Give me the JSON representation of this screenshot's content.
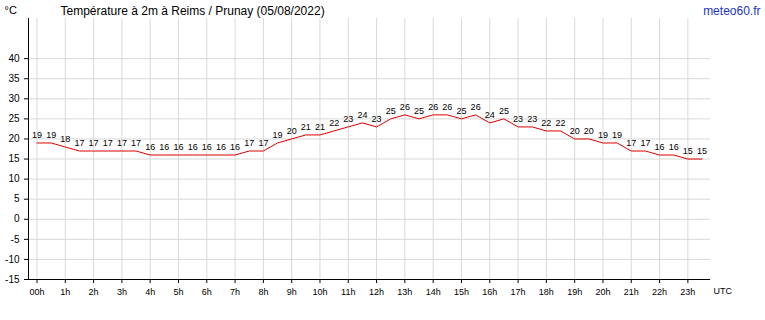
{
  "chart_data": {
    "type": "line",
    "title": "Température à 2m à Reims / Prunay (05/08/2022)",
    "source": "meteo60.fr",
    "x_label": "UTC",
    "y_label": "°C",
    "x": [
      0,
      0.5,
      1,
      1.5,
      2,
      2.5,
      3,
      3.5,
      4,
      4.5,
      5,
      5.5,
      6,
      6.5,
      7,
      7.5,
      8,
      8.5,
      9,
      9.5,
      10,
      10.5,
      11,
      11.5,
      12,
      12.5,
      13,
      13.5,
      14,
      14.5,
      15,
      15.5,
      16,
      16.5,
      17,
      17.5,
      18,
      18.5,
      19,
      19.5,
      20,
      20.5,
      21,
      21.5,
      22,
      22.5,
      23,
      23.5
    ],
    "values": [
      19,
      19,
      18,
      17,
      17,
      17,
      17,
      17,
      16,
      16,
      16,
      16,
      16,
      16,
      16,
      17,
      17,
      19,
      20,
      21,
      21,
      22,
      23,
      24,
      23,
      25,
      26,
      25,
      26,
      26,
      25,
      26,
      24,
      25,
      23,
      23,
      22,
      22,
      20,
      20,
      19,
      19,
      17,
      17,
      16,
      16,
      15,
      15
    ],
    "color": "#e00000",
    "data_labels": true,
    "grid": true,
    "xlim": [
      -0.3,
      23.8
    ],
    "xticks": [
      {
        "value": 0,
        "label": "00h"
      },
      {
        "value": 1,
        "label": "1h"
      },
      {
        "value": 2,
        "label": "2h"
      },
      {
        "value": 3,
        "label": "3h"
      },
      {
        "value": 4,
        "label": "4h"
      },
      {
        "value": 5,
        "label": "5h"
      },
      {
        "value": 6,
        "label": "6h"
      },
      {
        "value": 7,
        "label": "7h"
      },
      {
        "value": 8,
        "label": "8h"
      },
      {
        "value": 9,
        "label": "9h"
      },
      {
        "value": 10,
        "label": "10h"
      },
      {
        "value": 11,
        "label": "11h"
      },
      {
        "value": 12,
        "label": "12h"
      },
      {
        "value": 13,
        "label": "13h"
      },
      {
        "value": 14,
        "label": "14h"
      },
      {
        "value": 15,
        "label": "15h"
      },
      {
        "value": 16,
        "label": "16h"
      },
      {
        "value": 17,
        "label": "17h"
      },
      {
        "value": 18,
        "label": "18h"
      },
      {
        "value": 19,
        "label": "19h"
      },
      {
        "value": 20,
        "label": "20h"
      },
      {
        "value": 21,
        "label": "21h"
      },
      {
        "value": 22,
        "label": "22h"
      },
      {
        "value": 23,
        "label": "23h"
      }
    ],
    "ylim": [
      -15,
      50
    ],
    "yticks": [
      -15,
      -10,
      -5,
      0,
      5,
      10,
      15,
      20,
      25,
      30,
      35,
      40
    ]
  }
}
